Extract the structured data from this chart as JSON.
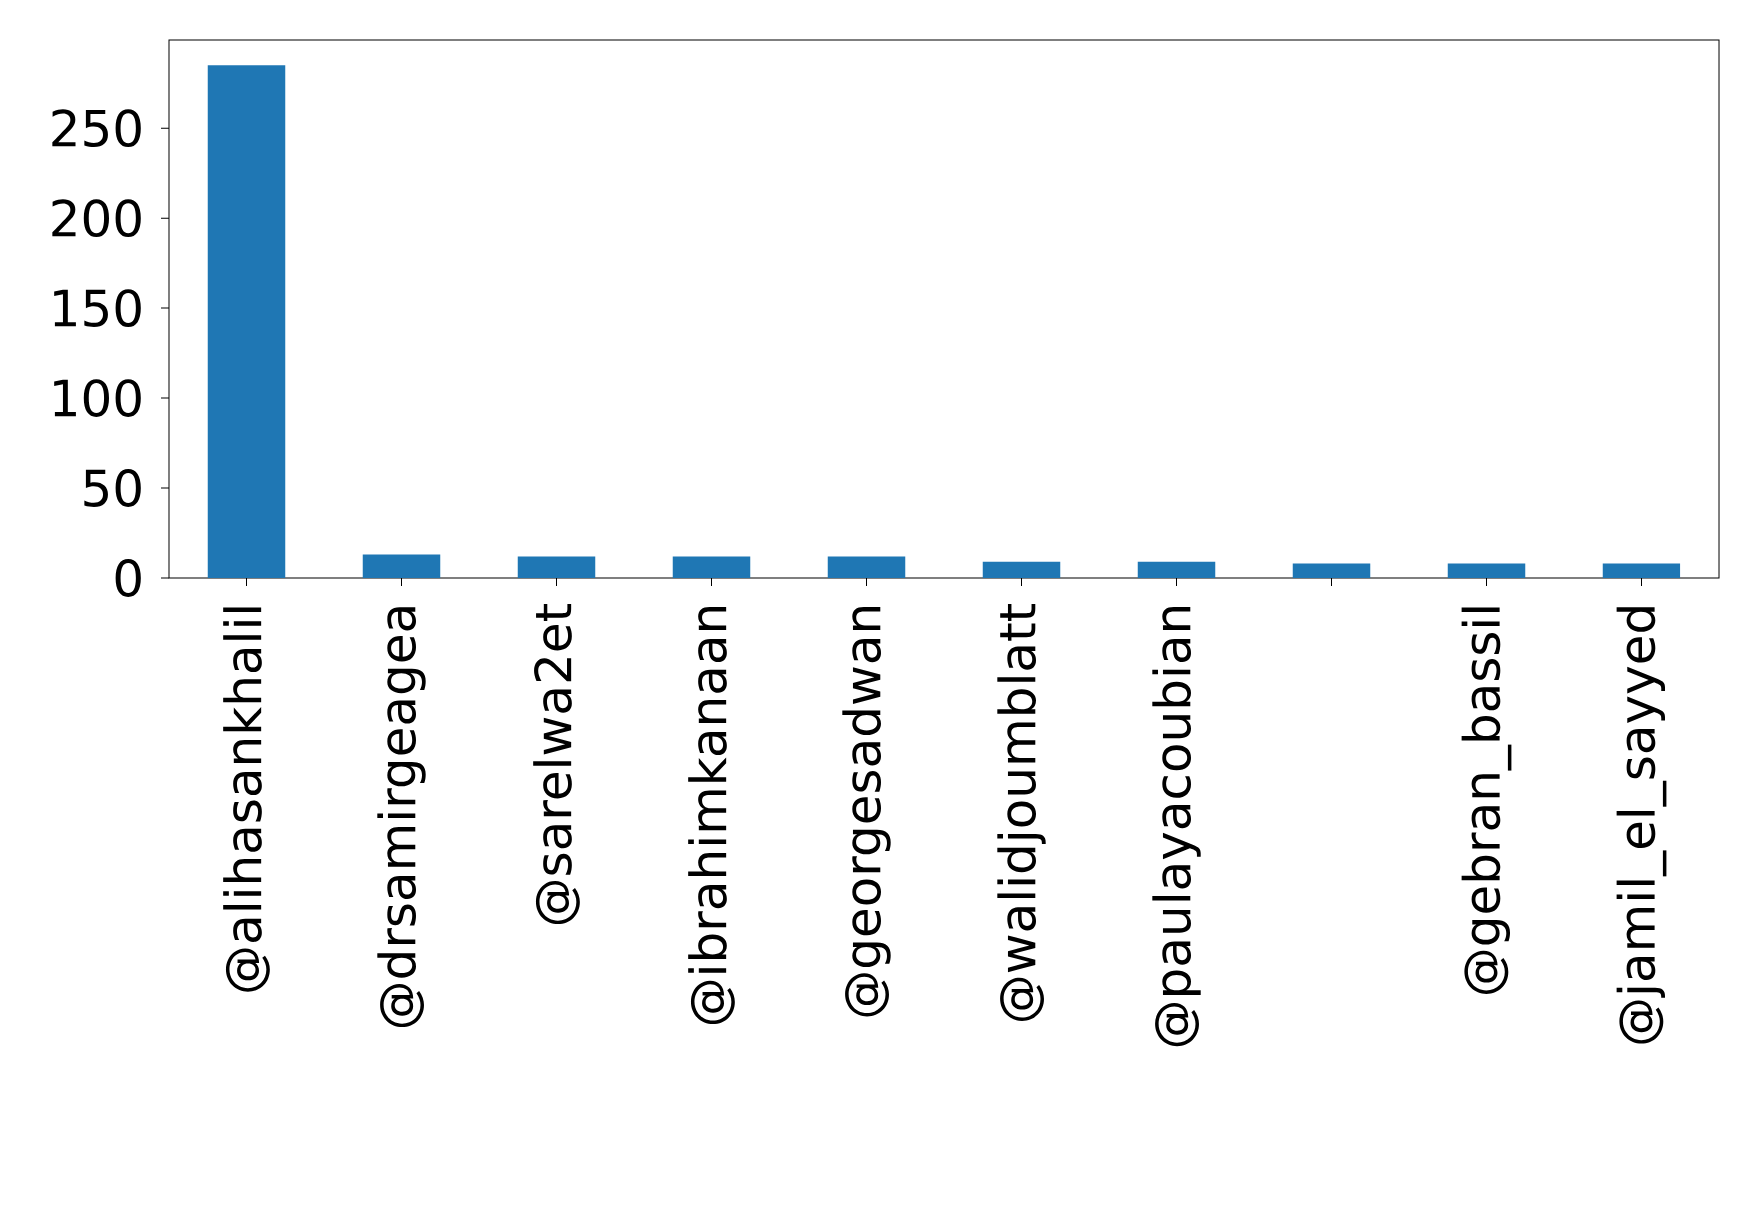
{
  "chart_data": {
    "type": "bar",
    "categories": [
      "@alihasankhalil",
      "@drsamirgeagea",
      "@sarelwa2et",
      "@ibrahimkanaan",
      "@georgesadwan",
      "@walidjoumblatt",
      "@paulayacoubian",
      null,
      "@gebran_bassil",
      "@jamil_el_sayyed"
    ],
    "values": [
      285,
      13,
      12,
      12,
      12,
      9,
      9,
      8,
      8,
      8
    ],
    "color": "#1f77b4",
    "ylim": [
      0,
      299
    ],
    "yticks": [
      0,
      50,
      100,
      150,
      200,
      250
    ]
  }
}
